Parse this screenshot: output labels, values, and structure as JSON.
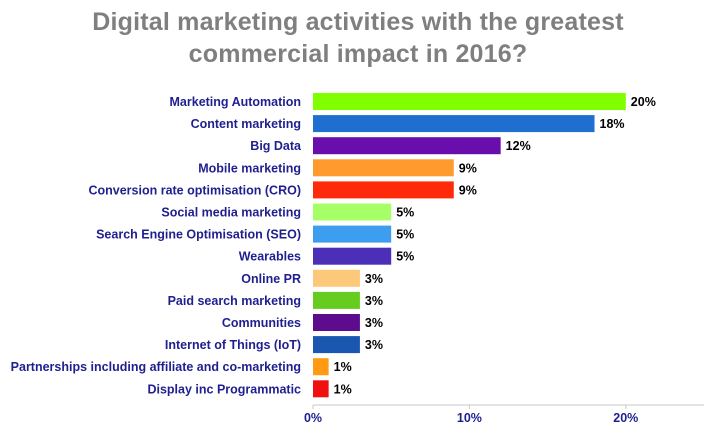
{
  "chart_data": {
    "type": "bar",
    "orientation": "horizontal",
    "title_lines": [
      "Digital marketing activities with the greatest",
      "commercial impact in 2016?"
    ],
    "categories": [
      "Marketing Automation",
      "Content marketing",
      "Big Data",
      "Mobile marketing",
      "Conversion rate optimisation (CRO)",
      "Social media marketing",
      "Search Engine Optimisation (SEO)",
      "Wearables",
      "Online PR",
      "Paid search marketing",
      "Communities",
      "Internet of Things (IoT)",
      "Partnerships including affiliate and co-marketing",
      "Display inc Programmatic"
    ],
    "values": [
      20,
      18,
      12,
      9,
      9,
      5,
      5,
      5,
      3,
      3,
      3,
      3,
      1,
      1
    ],
    "value_labels": [
      "20%",
      "18%",
      "12%",
      "9%",
      "9%",
      "5%",
      "5%",
      "5%",
      "3%",
      "3%",
      "3%",
      "3%",
      "1%",
      "1%"
    ],
    "colors": [
      "#7fff00",
      "#1f6fd1",
      "#6a0dad",
      "#ff9a2e",
      "#ff2a0a",
      "#a6ff66",
      "#3d9ef0",
      "#4b2fb8",
      "#fcc97a",
      "#66cc1f",
      "#5c0c8c",
      "#1a57b0",
      "#ff9a12",
      "#f01010"
    ],
    "xlim": [
      0,
      25
    ],
    "xticks": [
      0,
      10,
      20
    ],
    "xtick_labels": [
      "0%",
      "10%",
      "20%"
    ],
    "grid": false,
    "legend": "none"
  }
}
